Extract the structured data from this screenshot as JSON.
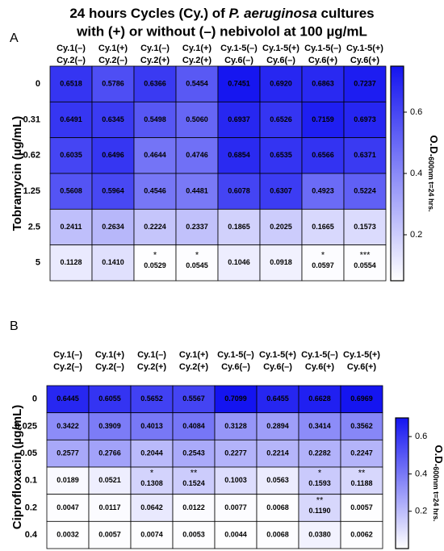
{
  "title_parts": [
    "24 hours Cycles (Cy.) of ",
    "P. aeruginosa",
    " cultures",
    "with (+) or without (–) nebivolol at 100 µg/mL"
  ],
  "chart_data": [
    {
      "type": "heatmap",
      "panel": "A",
      "ylabel": "Tobramycin (µg/mL)",
      "columns": [
        [
          "Cy.1(–)",
          "Cy.2(–)"
        ],
        [
          "Cy.1(+)",
          "Cy.2(–)"
        ],
        [
          "Cy.1(–)",
          "Cy.2(+)"
        ],
        [
          "Cy.1(+)",
          "Cy.2(+)"
        ],
        [
          "Cy.1-5(–)",
          "Cy.6(–)"
        ],
        [
          "Cy.1-5(+)",
          "Cy.6(–)"
        ],
        [
          "Cy.1-5(–)",
          "Cy.6(+)"
        ],
        [
          "Cy.1-5(+)",
          "Cy.6(+)"
        ]
      ],
      "rows": [
        "0",
        "0.31",
        "0.62",
        "1.25",
        "2.5",
        "5"
      ],
      "values": [
        [
          0.6518,
          0.5786,
          0.6366,
          0.5454,
          0.7451,
          0.692,
          0.6863,
          0.7237
        ],
        [
          0.6491,
          0.6345,
          0.5498,
          0.506,
          0.6937,
          0.6526,
          0.7159,
          0.6973
        ],
        [
          0.6035,
          0.6496,
          0.4644,
          0.4746,
          0.6854,
          0.6535,
          0.6566,
          0.6371
        ],
        [
          0.5608,
          0.5964,
          0.4546,
          0.4481,
          0.6078,
          0.6307,
          0.4923,
          0.5224
        ],
        [
          0.2411,
          0.2634,
          0.2224,
          0.2337,
          0.1865,
          0.2025,
          0.1665,
          0.1573
        ],
        [
          0.1128,
          0.141,
          0.0529,
          0.0545,
          0.1046,
          0.0918,
          0.0597,
          0.0554
        ]
      ],
      "value_labels": [
        [
          "0.6518",
          "0.5786",
          "0.6366",
          "0.5454",
          "0.7451",
          "0.6920",
          "0.6863",
          "0.7237"
        ],
        [
          "0.6491",
          "0.6345",
          "0.5498",
          "0.5060",
          "0.6937",
          "0.6526",
          "0.7159",
          "0.6973"
        ],
        [
          "0.6035",
          "0.6496",
          "0.4644",
          "0.4746",
          "0.6854",
          "0.6535",
          "0.6566",
          "0.6371"
        ],
        [
          "0.5608",
          "0.5964",
          "0.4546",
          "0.4481",
          "0.6078",
          "0.6307",
          "0.4923",
          "0.5224"
        ],
        [
          "0.2411",
          "0.2634",
          "0.2224",
          "0.2337",
          "0.1865",
          "0.2025",
          "0.1665",
          "0.1573"
        ],
        [
          "0.1128",
          "0.1410",
          "0.0529",
          "0.0545",
          "0.1046",
          "0.0918",
          "0.0597",
          "0.0554"
        ]
      ],
      "annotations": [
        [
          null,
          null,
          null,
          null,
          null,
          null,
          null,
          null
        ],
        [
          null,
          null,
          null,
          null,
          null,
          null,
          null,
          null
        ],
        [
          null,
          null,
          null,
          null,
          null,
          null,
          null,
          null
        ],
        [
          null,
          null,
          null,
          null,
          null,
          null,
          null,
          null
        ],
        [
          null,
          null,
          null,
          null,
          null,
          null,
          null,
          null
        ],
        [
          null,
          null,
          "*",
          "*",
          null,
          null,
          "*",
          "***"
        ]
      ],
      "cmap": [
        "#ffffff",
        "#1414f0"
      ],
      "clim": [
        0.05,
        0.75
      ],
      "cticks": [
        0.2,
        0.4,
        0.6
      ],
      "colorbar_label": [
        "O.D.",
        "600nm t=24 hrs."
      ]
    },
    {
      "type": "heatmap",
      "panel": "B",
      "ylabel": "Ciprofloxacin (µg/mL)",
      "columns": [
        [
          "Cy.1(–)",
          "Cy.2(–)"
        ],
        [
          "Cy.1(+)",
          "Cy.2(–)"
        ],
        [
          "Cy.1(–)",
          "Cy.2(+)"
        ],
        [
          "Cy.1(+)",
          "Cy.2(+)"
        ],
        [
          "Cy.1-5(–)",
          "Cy.6(–)"
        ],
        [
          "Cy.1-5(+)",
          "Cy.6(–)"
        ],
        [
          "Cy.1-5(–)",
          "Cy.6(+)"
        ],
        [
          "Cy.1-5(+)",
          "Cy.6(+)"
        ]
      ],
      "rows": [
        "0",
        "0.025",
        "0.05",
        "0.1",
        "0.2",
        "0.4"
      ],
      "values": [
        [
          0.6445,
          0.6055,
          0.5652,
          0.5567,
          0.7099,
          0.6455,
          0.6628,
          0.6969
        ],
        [
          0.3422,
          0.3909,
          0.4013,
          0.4084,
          0.3128,
          0.2894,
          0.3414,
          0.3562
        ],
        [
          0.2577,
          0.2766,
          0.2044,
          0.2543,
          0.2277,
          0.2214,
          0.2282,
          0.2247
        ],
        [
          0.0189,
          0.0521,
          0.1308,
          0.1524,
          0.1003,
          0.0563,
          0.1593,
          0.1188
        ],
        [
          0.0047,
          0.0117,
          0.0642,
          0.0122,
          0.0077,
          0.0068,
          0.119,
          0.0057
        ],
        [
          0.0032,
          0.0057,
          0.0074,
          0.0053,
          0.0044,
          0.0068,
          0.038,
          0.0062
        ]
      ],
      "value_labels": [
        [
          "0.6445",
          "0.6055",
          "0.5652",
          "0.5567",
          "0.7099",
          "0.6455",
          "0.6628",
          "0.6969"
        ],
        [
          "0.3422",
          "0.3909",
          "0.4013",
          "0.4084",
          "0.3128",
          "0.2894",
          "0.3414",
          "0.3562"
        ],
        [
          "0.2577",
          "0.2766",
          "0.2044",
          "0.2543",
          "0.2277",
          "0.2214",
          "0.2282",
          "0.2247"
        ],
        [
          "0.0189",
          "0.0521",
          "0.1308",
          "0.1524",
          "0.1003",
          "0.0563",
          "0.1593",
          "0.1188"
        ],
        [
          "0.0047",
          "0.0117",
          "0.0642",
          "0.0122",
          "0.0077",
          "0.0068",
          "0.1190",
          "0.0057"
        ],
        [
          "0.0032",
          "0.0057",
          "0.0074",
          "0.0053",
          "0.0044",
          "0.0068",
          "0.0380",
          "0.0062"
        ]
      ],
      "annotations": [
        [
          null,
          null,
          null,
          null,
          null,
          null,
          null,
          null
        ],
        [
          null,
          null,
          null,
          null,
          null,
          null,
          null,
          null
        ],
        [
          null,
          null,
          null,
          null,
          null,
          null,
          null,
          null
        ],
        [
          null,
          null,
          "*",
          "**",
          null,
          null,
          "*",
          "**"
        ],
        [
          null,
          null,
          null,
          null,
          null,
          null,
          "**",
          null
        ],
        [
          null,
          null,
          null,
          null,
          null,
          null,
          null,
          null
        ]
      ],
      "cmap": [
        "#ffffff",
        "#1414f0"
      ],
      "clim": [
        0,
        0.7
      ],
      "cticks": [
        0.2,
        0.4,
        0.6
      ],
      "colorbar_label": [
        "O.D.",
        "600nm t=24 hrs."
      ]
    }
  ]
}
